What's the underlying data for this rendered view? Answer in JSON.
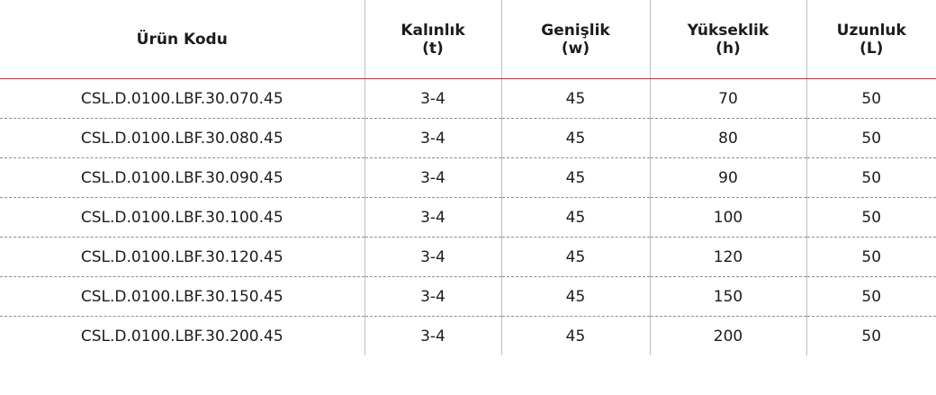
{
  "table": {
    "headers": [
      {
        "line1": "Ürün Kodu",
        "line2": ""
      },
      {
        "line1": "Kalınlık",
        "line2": "(t)"
      },
      {
        "line1": "Genişlik",
        "line2": "(w)"
      },
      {
        "line1": "Yükseklik",
        "line2": "(h)"
      },
      {
        "line1": "Uzunluk",
        "line2": "(L)"
      }
    ],
    "rows": [
      [
        "CSL.D.0100.LBF.30.070.45",
        "3-4",
        "45",
        "70",
        "50"
      ],
      [
        "CSL.D.0100.LBF.30.080.45",
        "3-4",
        "45",
        "80",
        "50"
      ],
      [
        "CSL.D.0100.LBF.30.090.45",
        "3-4",
        "45",
        "90",
        "50"
      ],
      [
        "CSL.D.0100.LBF.30.100.45",
        "3-4",
        "45",
        "100",
        "50"
      ],
      [
        "CSL.D.0100.LBF.30.120.45",
        "3-4",
        "45",
        "120",
        "50"
      ],
      [
        "CSL.D.0100.LBF.30.150.45",
        "3-4",
        "45",
        "150",
        "50"
      ],
      [
        "CSL.D.0100.LBF.30.200.45",
        "3-4",
        "45",
        "200",
        "50"
      ]
    ]
  },
  "colors": {
    "header_rule": "#b5394b",
    "row_divider": "#8e8e8e",
    "column_divider": "#bdbdbd"
  }
}
